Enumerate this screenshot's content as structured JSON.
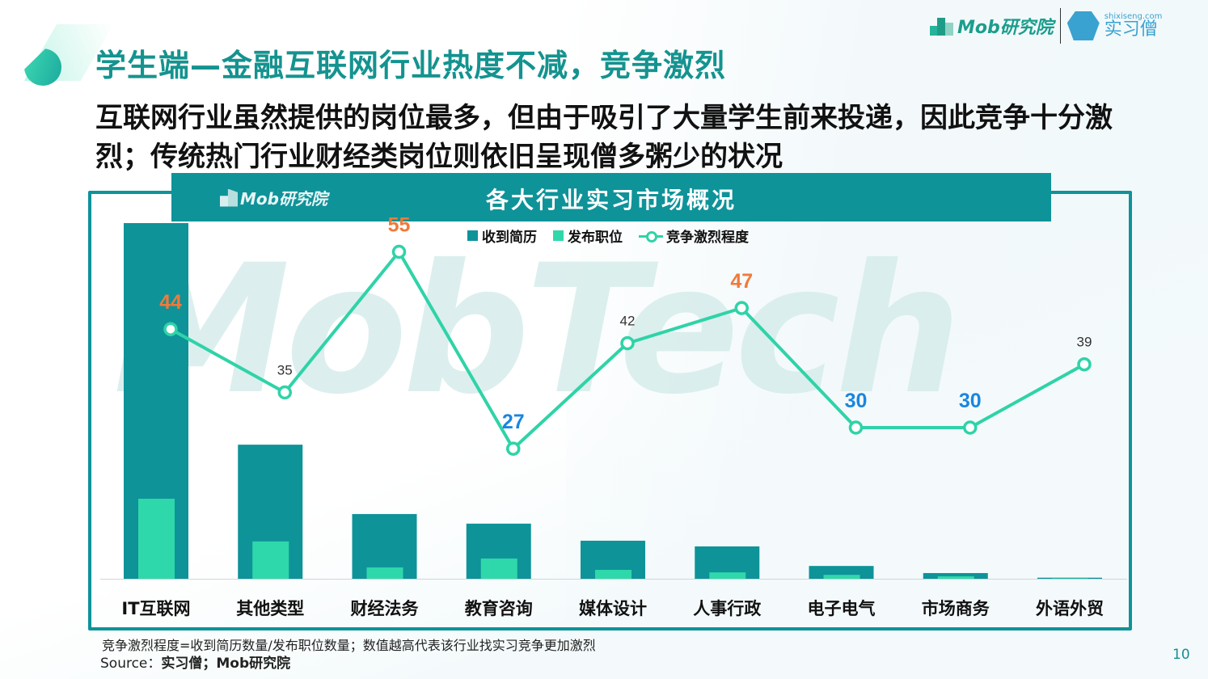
{
  "slide": {
    "title": "学生端—金融互联网行业热度不减，竞争激烈",
    "subtitle": "互联网行业虽然提供的岗位最多，但由于吸引了大量学生前来投递，因此竞争十分激烈；传统热门行业财经类岗位则依旧呈现僧多粥少的状况",
    "page_number": "10",
    "logos": {
      "mob": "Mob研究院",
      "shixiseng_url": "shixiseng.com",
      "shixiseng_name": "实习僧"
    },
    "watermark": "MobTech",
    "footnote": "竞争激烈程度=收到简历数量/发布职位数量；数值越高代表该行业找实习竞争更加激烈",
    "source_prefix": "Source：",
    "source_text": "实习僧；Mob研究院"
  },
  "chart_header": {
    "logo": "Mob研究院",
    "title": "各大行业实习市场概况"
  },
  "legend": {
    "received": "收到简历",
    "posted": "发布职位",
    "competition": "竞争激烈程度"
  },
  "colors": {
    "received": "#0e9399",
    "posted": "#2fd8aa",
    "line": "#2fd3a8",
    "high_label": "#f07a3a",
    "low_label": "#1a86e0",
    "mid_label": "#333333",
    "title": "#14938f"
  },
  "chart_data": {
    "type": "bar+line",
    "title": "各大行业实习市场概况",
    "xlabel": "",
    "ylabel": "",
    "categories": [
      "IT互联网",
      "其他类型",
      "财经法务",
      "教育咨询",
      "媒体设计",
      "人事行政",
      "电子电气",
      "市场商务",
      "外语外贸"
    ],
    "series": [
      {
        "name": "收到简历",
        "type": "bar",
        "unit": "relative index (IT互联网=100, estimated from bar height)",
        "values": [
          100,
          37.7,
          18.2,
          15.5,
          10.7,
          9.1,
          3.6,
          1.6,
          0.3
        ]
      },
      {
        "name": "发布职位",
        "type": "bar",
        "unit": "relative index (estimated from bar height)",
        "values": [
          22.5,
          10.5,
          3.2,
          5.7,
          2.5,
          1.8,
          1.1,
          0.7,
          0.1
        ]
      },
      {
        "name": "竞争激烈程度",
        "type": "line",
        "values": [
          44,
          35,
          55,
          27,
          42,
          47,
          30,
          30,
          39
        ]
      }
    ],
    "label_styles": [
      "high",
      "mid",
      "high",
      "low",
      "mid",
      "high",
      "low",
      "low",
      "mid"
    ],
    "grid": false,
    "y_axis_visible": false,
    "legend_position": "top"
  }
}
